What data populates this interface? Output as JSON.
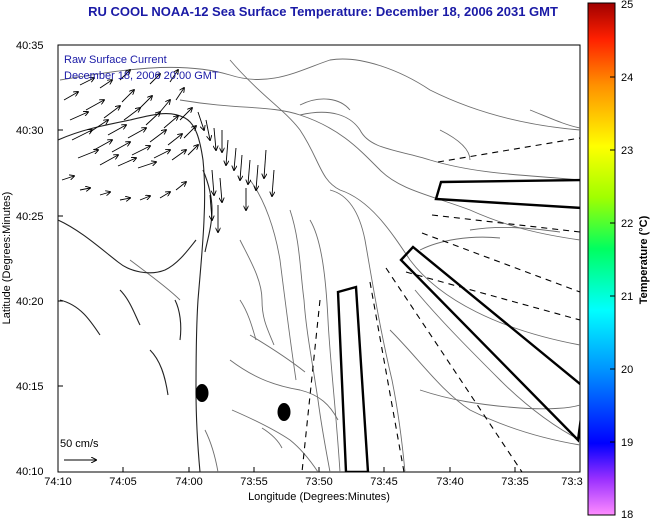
{
  "title": "RU COOL  NOAA-12  Sea Surface Temperature:  December 18, 2006 2031 GMT",
  "current_label_line1": "Raw Surface Current",
  "current_label_line2": "December 18, 2006 20:00 GMT",
  "scale_label": "50 cm/s",
  "axes": {
    "xlabel": "Longitude (Degrees:Minutes)",
    "ylabel": "Latitude (Degrees:Minutes)",
    "x_ticks": [
      "74:10",
      "74:05",
      "74:00",
      "73:55",
      "73:50",
      "73:45",
      "73:40",
      "73:35",
      "73:3"
    ],
    "y_ticks": [
      "40:35",
      "40:30",
      "40:25",
      "40:20",
      "40:15",
      "40:10"
    ]
  },
  "colorbar": {
    "title": "Temperature (°C)",
    "min": 18,
    "max": 25,
    "ticks": [
      "25",
      "24",
      "23",
      "22",
      "21",
      "20",
      "19",
      "18"
    ]
  },
  "colors": {
    "title_blue": "#1a1aa6",
    "contour": "#6e6e6e",
    "coast": "#222222"
  }
}
